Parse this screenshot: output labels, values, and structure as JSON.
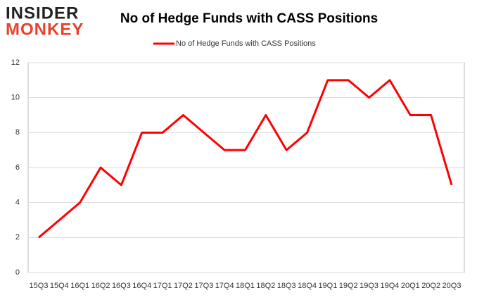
{
  "logo": {
    "top": "INSIDER",
    "bottom": "MONKEY"
  },
  "chart_data": {
    "type": "line",
    "title": "No of Hedge Funds with CASS Positions",
    "categories": [
      "15Q3",
      "15Q4",
      "16Q1",
      "16Q2",
      "16Q3",
      "16Q4",
      "17Q1",
      "17Q2",
      "17Q3",
      "17Q4",
      "18Q1",
      "18Q2",
      "18Q3",
      "18Q4",
      "19Q1",
      "19Q2",
      "19Q3",
      "19Q4",
      "20Q1",
      "20Q2",
      "20Q3"
    ],
    "series": [
      {
        "name": "No of Hedge Funds with CASS Positions",
        "color": "#ff0000",
        "values": [
          2,
          3,
          4,
          6,
          5,
          8,
          8,
          9,
          8,
          7,
          7,
          9,
          7,
          8,
          11,
          11,
          10,
          11,
          9,
          9,
          5
        ]
      }
    ],
    "ylim": [
      0,
      12
    ],
    "yticks": [
      0,
      2,
      4,
      6,
      8,
      10,
      12
    ],
    "grid": true,
    "legend": "top"
  }
}
